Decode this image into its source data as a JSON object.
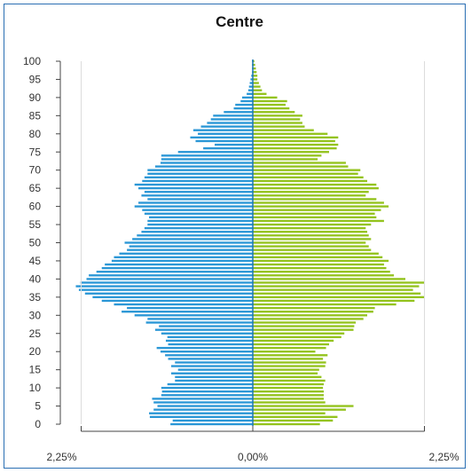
{
  "chart_data": {
    "type": "bar",
    "orientation": "horizontal",
    "title": "Centre",
    "x_tick_labels": [
      "2,25%",
      "0,00%",
      "2,25%"
    ],
    "xlim": [
      -2.25,
      2.25
    ],
    "y_ticks": [
      0,
      5,
      10,
      15,
      20,
      25,
      30,
      35,
      40,
      45,
      50,
      55,
      60,
      65,
      70,
      75,
      80,
      85,
      90,
      95,
      100
    ],
    "ylim": [
      0,
      100
    ],
    "grid": false,
    "legend": "none",
    "colors": {
      "left": "#2b97d6",
      "right": "#94c31e",
      "axis": "#333333",
      "frame": "#2a6fb3"
    },
    "ages": [
      0,
      1,
      2,
      3,
      4,
      5,
      6,
      7,
      8,
      9,
      10,
      11,
      12,
      13,
      14,
      15,
      16,
      17,
      18,
      19,
      20,
      21,
      22,
      23,
      24,
      25,
      26,
      27,
      28,
      29,
      30,
      31,
      32,
      33,
      34,
      35,
      36,
      37,
      38,
      39,
      40,
      41,
      42,
      43,
      44,
      45,
      46,
      47,
      48,
      49,
      50,
      51,
      52,
      53,
      54,
      55,
      56,
      57,
      58,
      59,
      60,
      61,
      62,
      63,
      64,
      65,
      66,
      67,
      68,
      69,
      70,
      71,
      72,
      73,
      74,
      75,
      76,
      77,
      78,
      79,
      80,
      81,
      82,
      83,
      84,
      85,
      86,
      87,
      88,
      89,
      90,
      91,
      92,
      93,
      94,
      95,
      96,
      97,
      98,
      99,
      100
    ],
    "series": [
      {
        "side": "left",
        "values": [
          1.08,
          1.05,
          1.35,
          1.36,
          1.3,
          1.25,
          1.3,
          1.32,
          1.2,
          1.19,
          1.2,
          1.12,
          1.02,
          1.02,
          1.07,
          0.98,
          1.07,
          1.02,
          1.11,
          1.15,
          1.21,
          1.26,
          1.11,
          1.14,
          1.12,
          1.2,
          1.28,
          1.23,
          1.4,
          1.38,
          1.55,
          1.72,
          1.65,
          1.82,
          1.98,
          2.1,
          2.2,
          2.28,
          2.32,
          2.26,
          2.18,
          2.15,
          2.05,
          1.98,
          1.94,
          1.85,
          1.82,
          1.75,
          1.65,
          1.62,
          1.68,
          1.58,
          1.52,
          1.46,
          1.42,
          1.38,
          1.38,
          1.36,
          1.42,
          1.45,
          1.55,
          1.5,
          1.38,
          1.46,
          1.42,
          1.5,
          1.55,
          1.45,
          1.42,
          1.38,
          1.38,
          1.28,
          1.21,
          1.2,
          1.2,
          0.98,
          0.65,
          0.5,
          0.75,
          0.82,
          0.72,
          0.78,
          0.68,
          0.6,
          0.55,
          0.52,
          0.38,
          0.25,
          0.23,
          0.16,
          0.14,
          0.08,
          0.06,
          0.05,
          0.04,
          0.03,
          0.02,
          0.01,
          0.01,
          0.01,
          0.01
        ]
      },
      {
        "side": "right",
        "values": [
          0.88,
          1.05,
          1.11,
          0.95,
          1.22,
          1.32,
          0.95,
          0.93,
          0.93,
          0.93,
          0.92,
          0.93,
          0.95,
          0.9,
          0.85,
          0.87,
          0.95,
          0.96,
          0.92,
          0.98,
          0.82,
          0.96,
          1.0,
          1.06,
          1.16,
          1.2,
          1.32,
          1.33,
          1.35,
          1.45,
          1.5,
          1.58,
          1.6,
          1.88,
          2.12,
          2.25,
          2.2,
          2.1,
          2.18,
          2.25,
          2.0,
          1.85,
          1.8,
          1.75,
          1.72,
          1.78,
          1.7,
          1.65,
          1.55,
          1.52,
          1.48,
          1.55,
          1.52,
          1.5,
          1.48,
          1.55,
          1.72,
          1.62,
          1.6,
          1.68,
          1.78,
          1.72,
          1.62,
          1.48,
          1.52,
          1.65,
          1.62,
          1.5,
          1.45,
          1.38,
          1.41,
          1.25,
          1.22,
          0.85,
          0.9,
          1.0,
          1.1,
          1.12,
          1.08,
          1.12,
          0.98,
          0.8,
          0.68,
          0.65,
          0.62,
          0.65,
          0.55,
          0.48,
          0.43,
          0.45,
          0.32,
          0.18,
          0.12,
          0.1,
          0.08,
          0.06,
          0.06,
          0.05,
          0.04,
          0.03,
          0.02
        ]
      }
    ]
  }
}
